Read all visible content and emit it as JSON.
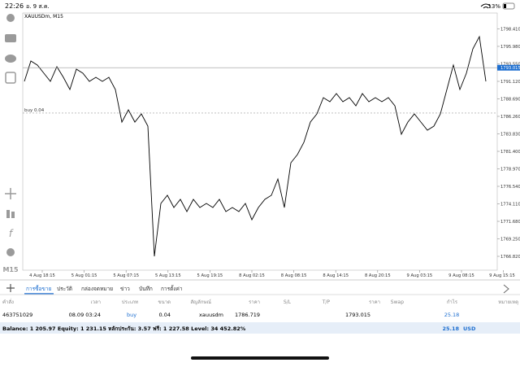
{
  "status_bar": {
    "time": "22:26",
    "date": "อ. 9 ส.ค.",
    "battery": "13%"
  },
  "toolbar": {
    "timeframe": "M15"
  },
  "chart_data": {
    "type": "line",
    "title": "XAUUSDm, M15",
    "color": "#000000",
    "xtick_labels": [
      "4 Aug 18:15",
      "5 Aug 01:15",
      "5 Aug 07:15",
      "5 Aug 13:15",
      "5 Aug 19:15",
      "8 Aug 02:15",
      "8 Aug 08:15",
      "8 Aug 14:15",
      "8 Aug 20:15",
      "9 Aug 03:15",
      "9 Aug 08:15",
      "9 Aug 15:15"
    ],
    "values": [
      1791.12,
      1793.94,
      1793.38,
      1792.25,
      1791.12,
      1793.15,
      1791.68,
      1789.99,
      1792.81,
      1792.25,
      1791.12,
      1791.68,
      1791.12,
      1791.68,
      1789.99,
      1785.47,
      1787.16,
      1785.47,
      1786.6,
      1784.9,
      1766.82,
      1774.17,
      1775.3,
      1773.6,
      1774.73,
      1773.04,
      1774.73,
      1773.6,
      1774.17,
      1773.6,
      1774.73,
      1773.04,
      1773.6,
      1773.04,
      1774.17,
      1771.91,
      1773.6,
      1774.73,
      1775.3,
      1777.56,
      1773.6,
      1779.82,
      1780.95,
      1782.64,
      1785.47,
      1786.6,
      1788.86,
      1788.29,
      1789.42,
      1788.29,
      1788.86,
      1787.73,
      1789.42,
      1788.29,
      1788.86,
      1788.29,
      1788.86,
      1787.73,
      1783.77,
      1785.47,
      1786.6,
      1785.47,
      1784.34,
      1784.9,
      1786.6,
      1789.99,
      1793.38,
      1789.99,
      1792.25,
      1795.64,
      1797.33,
      1791.12
    ],
    "ylim": [
      1764.9,
      1800.61
    ],
    "yticks": [
      {
        "value": 1766.82,
        "label": "1766.820"
      },
      {
        "value": 1769.25,
        "label": "1769.250"
      },
      {
        "value": 1771.68,
        "label": "1771.680"
      },
      {
        "value": 1774.11,
        "label": "1774.110"
      },
      {
        "value": 1776.54,
        "label": "1776.540"
      },
      {
        "value": 1778.97,
        "label": "1778.970"
      },
      {
        "value": 1781.4,
        "label": "1781.400"
      },
      {
        "value": 1783.83,
        "label": "1783.830"
      },
      {
        "value": 1786.26,
        "label": "1786.260"
      },
      {
        "value": 1788.69,
        "label": "1788.690"
      },
      {
        "value": 1791.12,
        "label": "1791.120"
      },
      {
        "value": 1793.55,
        "label": "1793.550"
      },
      {
        "value": 1795.98,
        "label": "1795.980"
      },
      {
        "value": 1798.41,
        "label": "1798.410"
      }
    ],
    "order_label": "buy 0.04"
  },
  "tabs": [
    "การซื้อขาย",
    "ประวัติ",
    "กล่องจดหมาย",
    "ข่าว",
    "บันทึก",
    "การตั้งค่า"
  ],
  "table": {
    "headers": [
      "คำสั่ง",
      "เวลา",
      "ประเภท",
      "ขนาด",
      "สัญลักษณ์",
      "ราคา",
      "S/L",
      "T/P",
      "ราคา",
      "Swap",
      "กำไร",
      "หมายเหตุ"
    ],
    "rows": [
      {
        "order": "463751029",
        "time": "08.09 03:24",
        "type": "buy",
        "size": 0.04,
        "symbol": "xauusdm",
        "price_open": 1786.719,
        "price_current": 1793.015,
        "profit": 25.18
      }
    ]
  },
  "summary": {
    "text": "Balance: 1 205.97 Equity: 1 231.15 หลักประกัน: 3.57 ฟรี: 1 227.58 Level: 34 452.82%",
    "profit": 25.18,
    "currency": "USD"
  }
}
